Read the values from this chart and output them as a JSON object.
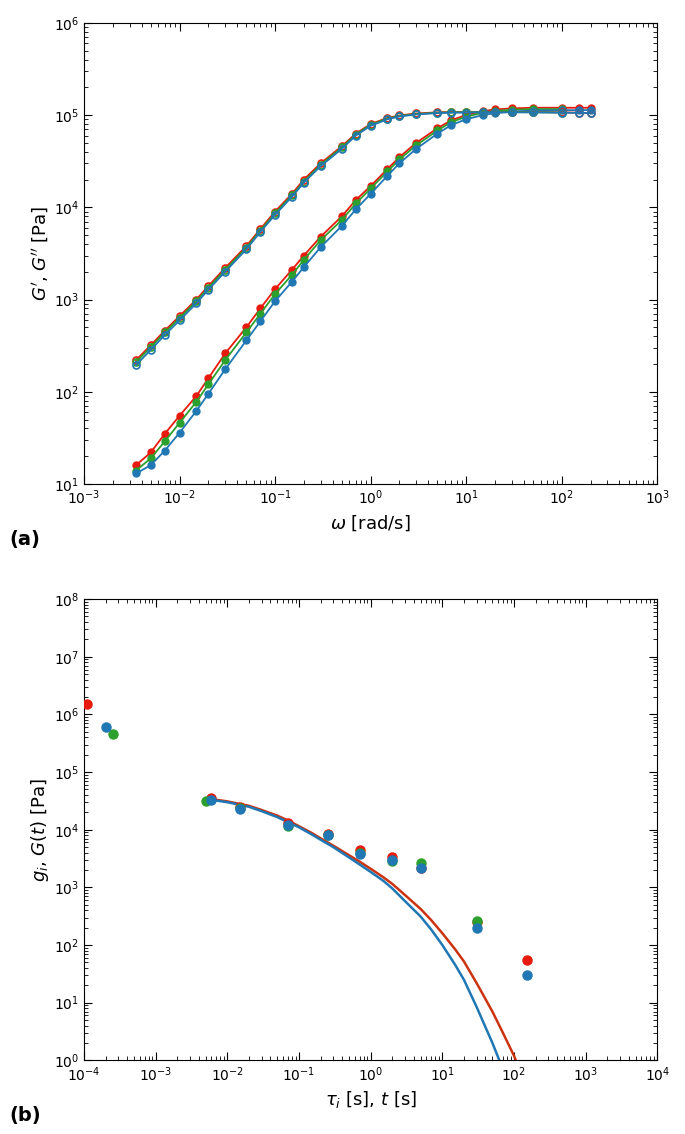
{
  "panel_a": {
    "xlabel": "$\\omega$ [rad/s]",
    "ylabel": "$G^{\\prime}$, $G^{\\prime\\prime}$ [Pa]",
    "xlim": [
      0.001,
      1000.0
    ],
    "ylim": [
      10,
      1000000.0
    ],
    "label": "(a)",
    "red_filled": {
      "x": [
        0.0035,
        0.005,
        0.007,
        0.01,
        0.015,
        0.02,
        0.03,
        0.05,
        0.07,
        0.1,
        0.15,
        0.2,
        0.3,
        0.5,
        0.7,
        1.0,
        1.5,
        2.0,
        3.0,
        5.0,
        7.0,
        10,
        15,
        20,
        30,
        50,
        100,
        150,
        200
      ],
      "y": [
        16,
        22,
        35,
        55,
        90,
        140,
        260,
        500,
        800,
        1300,
        2100,
        3000,
        4800,
        8000,
        12000,
        17000,
        26000,
        35000,
        50000,
        72000,
        88000,
        100000,
        110000,
        115000,
        118000,
        120000,
        120000,
        120000,
        120000
      ],
      "color": "#e8190d"
    },
    "green_filled": {
      "x": [
        0.0035,
        0.005,
        0.007,
        0.01,
        0.015,
        0.02,
        0.03,
        0.05,
        0.07,
        0.1,
        0.15,
        0.2,
        0.3,
        0.5,
        0.7,
        1.0,
        1.5,
        2.0,
        3.0,
        5.0,
        7.0,
        10,
        15,
        20,
        30,
        50,
        100
      ],
      "y": [
        14,
        19,
        29,
        46,
        78,
        120,
        220,
        440,
        700,
        1150,
        1850,
        2700,
        4400,
        7300,
        11000,
        16000,
        24500,
        33000,
        47000,
        68000,
        84000,
        96000,
        106000,
        111000,
        114000,
        116000,
        116000
      ],
      "color": "#2ca02c"
    },
    "blue_filled": {
      "x": [
        0.0035,
        0.005,
        0.007,
        0.01,
        0.015,
        0.02,
        0.03,
        0.05,
        0.07,
        0.1,
        0.15,
        0.2,
        0.3,
        0.5,
        0.7,
        1.0,
        1.5,
        2.0,
        3.0,
        5.0,
        7.0,
        10,
        15,
        20,
        30,
        50,
        100,
        150,
        200
      ],
      "y": [
        13,
        16,
        23,
        36,
        62,
        95,
        175,
        360,
        580,
        960,
        1560,
        2250,
        3700,
        6300,
        9500,
        14000,
        22000,
        30000,
        43000,
        63000,
        78000,
        90000,
        100000,
        105000,
        109000,
        112000,
        113000,
        113000,
        113000
      ],
      "color": "#1f77b4"
    },
    "red_open": {
      "x": [
        0.0035,
        0.005,
        0.007,
        0.01,
        0.015,
        0.02,
        0.03,
        0.05,
        0.07,
        0.1,
        0.15,
        0.2,
        0.3,
        0.5,
        0.7,
        1.0,
        1.5,
        2.0,
        3.0,
        5.0,
        7.0,
        10,
        15,
        20,
        30,
        50,
        100,
        150,
        200
      ],
      "y": [
        220,
        320,
        460,
        660,
        1000,
        1400,
        2200,
        3800,
        5800,
        9000,
        14000,
        20000,
        30000,
        46000,
        63000,
        80000,
        93000,
        99000,
        104000,
        107000,
        108000,
        108000,
        108000,
        108000,
        108000,
        108000,
        107000,
        106000,
        105000
      ],
      "color": "#e8190d"
    },
    "green_open": {
      "x": [
        0.0035,
        0.005,
        0.007,
        0.01,
        0.015,
        0.02,
        0.03,
        0.05,
        0.07,
        0.1,
        0.15,
        0.2,
        0.3,
        0.5,
        0.7,
        1.0,
        1.5,
        2.0,
        3.0,
        5.0,
        7.0,
        10,
        15,
        20,
        30,
        50,
        100
      ],
      "y": [
        210,
        305,
        440,
        630,
        960,
        1340,
        2100,
        3650,
        5600,
        8600,
        13500,
        19000,
        29000,
        44500,
        61500,
        78500,
        91500,
        97500,
        102500,
        106000,
        107000,
        107500,
        107500,
        107500,
        107500,
        107000,
        106500
      ],
      "color": "#2ca02c"
    },
    "blue_open": {
      "x": [
        0.0035,
        0.005,
        0.007,
        0.01,
        0.015,
        0.02,
        0.03,
        0.05,
        0.07,
        0.1,
        0.15,
        0.2,
        0.3,
        0.5,
        0.7,
        1.0,
        1.5,
        2.0,
        3.0,
        5.0,
        7.0,
        10,
        15,
        20,
        30,
        50,
        100,
        150,
        200
      ],
      "y": [
        195,
        285,
        412,
        595,
        910,
        1280,
        2000,
        3500,
        5400,
        8300,
        13000,
        18500,
        28000,
        43000,
        60000,
        76500,
        90000,
        96500,
        101500,
        105000,
        106000,
        106500,
        107000,
        107000,
        107000,
        107000,
        106000,
        105500,
        105000
      ],
      "color": "#1f77b4"
    }
  },
  "panel_b": {
    "xlabel": "$\\tau_i$ [s], $t$ [s]",
    "ylabel": "$g_i$, $G(t)$ [Pa]",
    "xlim": [
      0.0001,
      10000.0
    ],
    "ylim": [
      1,
      100000000.0
    ],
    "label": "(b)",
    "red_dots": {
      "x": [
        0.00011,
        0.006,
        0.015,
        0.07,
        0.25,
        0.7,
        2.0,
        5.0,
        30,
        150
      ],
      "y": [
        1500000.0,
        35000.0,
        25000.0,
        13000.0,
        8500,
        4500,
        3400,
        2200,
        250,
        55
      ],
      "color": "#e8190d"
    },
    "green_dots": {
      "x": [
        0.00025,
        0.005,
        0.015,
        0.07,
        0.25,
        0.7,
        2.0,
        5.0,
        30
      ],
      "y": [
        450000.0,
        32000.0,
        24000.0,
        11500.0,
        8000,
        4000,
        2900,
        2600,
        260
      ],
      "color": "#2ca02c"
    },
    "blue_dots": {
      "x": [
        0.0002,
        0.006,
        0.015,
        0.07,
        0.25,
        0.7,
        2.0,
        5.0,
        30,
        150
      ],
      "y": [
        600000.0,
        33000.0,
        23000.0,
        12000.0,
        8200,
        3800,
        3000,
        2200,
        200,
        30
      ],
      "color": "#1f77b4"
    },
    "red_curve_t": [
      0.005,
      0.007,
      0.01,
      0.02,
      0.03,
      0.05,
      0.07,
      0.1,
      0.15,
      0.2,
      0.3,
      0.5,
      0.7,
      1.0,
      1.5,
      2.0,
      3.0,
      5.0,
      7.0,
      10,
      15,
      20,
      30,
      50,
      70,
      100,
      150
    ],
    "red_curve_y": [
      35000.0,
      33000.0,
      31000.0,
      26000.0,
      22000.0,
      17500.0,
      14500.0,
      11500.0,
      8800,
      7100,
      5300,
      3600,
      2800,
      2100,
      1500,
      1150,
      740,
      420,
      270,
      160,
      85,
      52,
      22,
      7.0,
      3.0,
      1.2,
      0.35
    ],
    "blue_curve_t": [
      0.005,
      0.007,
      0.01,
      0.02,
      0.03,
      0.05,
      0.07,
      0.1,
      0.15,
      0.2,
      0.3,
      0.5,
      0.7,
      1.0,
      1.5,
      2.0,
      3.0,
      5.0,
      7.0,
      10,
      15,
      20,
      30,
      50,
      70,
      100,
      150
    ],
    "blue_curve_y": [
      34000.0,
      32000.0,
      30000.0,
      25000.0,
      21000.0,
      16500.0,
      13500.0,
      11000.0,
      8300,
      6700,
      5000,
      3300,
      2500,
      1850,
      1300,
      960,
      580,
      310,
      185,
      100,
      46,
      25,
      8.5,
      2.0,
      0.7,
      0.2,
      0.04
    ],
    "red_curve_color": "#cc3311",
    "blue_curve_color": "#1f77b4"
  }
}
